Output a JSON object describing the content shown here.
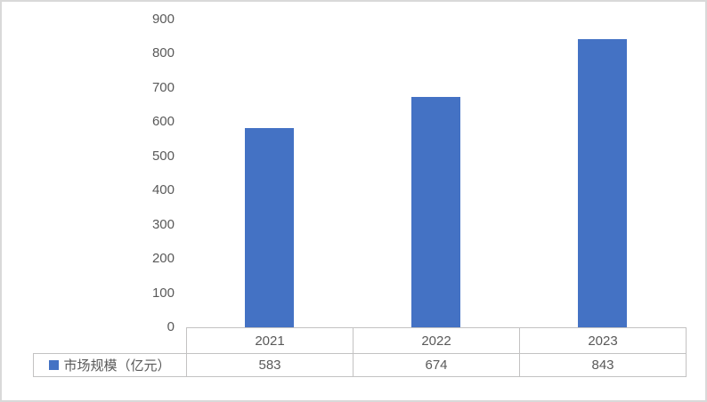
{
  "chart_data": {
    "type": "bar",
    "categories": [
      "2021",
      "2022",
      "2023"
    ],
    "series": [
      {
        "name": "市场规模（亿元）",
        "values": [
          583,
          674,
          843
        ]
      }
    ],
    "title": "",
    "xlabel": "",
    "ylabel": "",
    "ylim": [
      0,
      900
    ],
    "ytick_step": 100,
    "yticks": [
      900,
      800,
      700,
      600,
      500,
      400,
      300,
      200,
      100,
      0
    ],
    "grid": false,
    "legend_position": "data-table-left",
    "bar_color": "#4472C4"
  },
  "colors": {
    "bar": "#4472C4",
    "outer_border": "#D9D9D9",
    "table_border": "#C3C2C2",
    "text": "#595959",
    "background": "#FFFFFF"
  }
}
